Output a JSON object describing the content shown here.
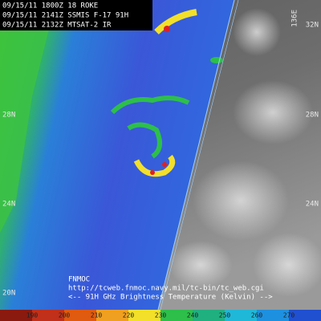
{
  "header": {
    "lines": [
      "09/15/11 1800Z  18 ROKE",
      "09/15/11 2141Z  SSMIS F-17 91H",
      "09/15/11 2132Z  MTSAT-2 IR"
    ]
  },
  "latitude_labels": {
    "left": [
      "28N",
      "24N",
      "20N"
    ],
    "right": [
      "32N",
      "28N",
      "24N"
    ]
  },
  "longitude_label": "136E",
  "footer": {
    "source": "FNMOC",
    "url": "http://tcweb.fnmoc.navy.mil/tc-bin/tc_web.cgi",
    "caption": "<--   91H GHz Brightness Temperature (Kelvin)   -->"
  },
  "colorbar": {
    "labels": [
      190,
      200,
      210,
      220,
      230,
      240,
      250,
      260,
      270
    ]
  }
}
